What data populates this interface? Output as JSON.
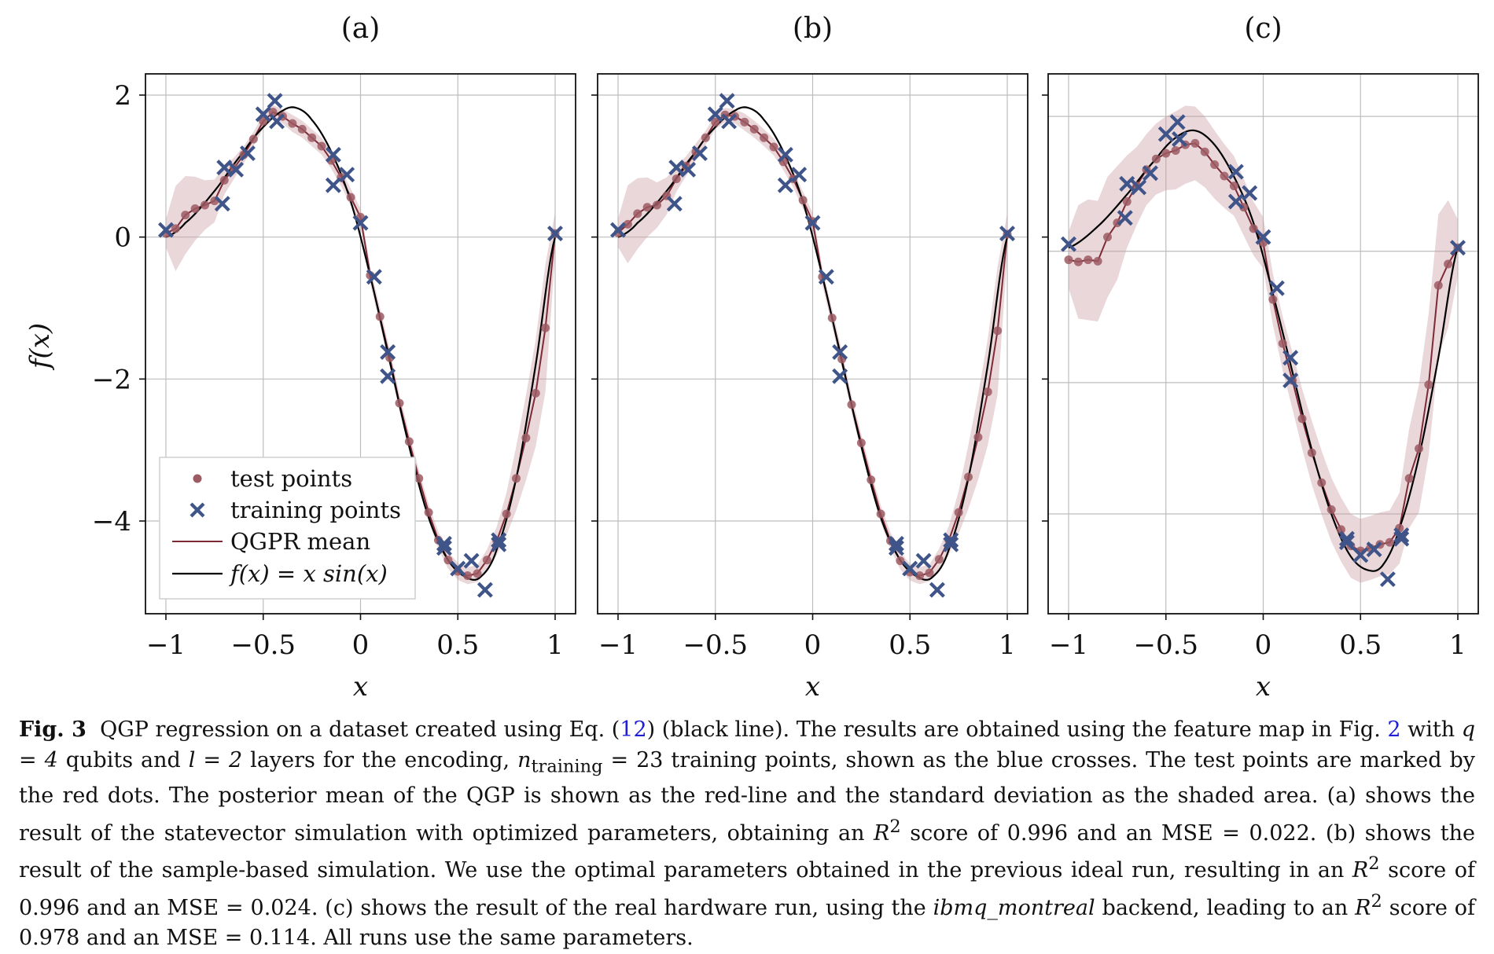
{
  "chart_data": [
    {
      "type": "scatter",
      "panel_label": "(a)",
      "xlabel": "x",
      "ylabel": "f(x)",
      "xlim": [
        -1.1,
        1.1
      ],
      "ylim": [
        -5.4,
        2.3
      ],
      "xticks": [
        -1,
        -0.5,
        0,
        0.5,
        1
      ],
      "xtick_labels": [
        "−1",
        "−0.5",
        "0",
        "0.5",
        "1"
      ],
      "yticks": [
        2,
        0,
        -2,
        -4
      ],
      "ytick_labels": [
        "2",
        "0",
        "−2",
        "−4"
      ],
      "grid": true,
      "legend": {
        "placement": "lower-left",
        "entries": [
          "test points",
          "training points",
          "QGPR mean",
          "f(x) = x sin(x)"
        ]
      },
      "series": [
        {
          "name": "training points",
          "marker": "x",
          "color": "#3f5488",
          "x": [
            -1.0,
            -0.71,
            -0.7,
            -0.64,
            -0.58,
            -0.5,
            -0.44,
            -0.43,
            -0.14,
            -0.14,
            -0.07,
            0.0,
            0.07,
            0.14,
            0.14,
            0.43,
            0.43,
            0.5,
            0.57,
            0.64,
            0.71,
            0.71,
            1.0
          ],
          "y": [
            0.1,
            0.47,
            0.98,
            0.95,
            1.18,
            1.73,
            1.92,
            1.63,
            1.16,
            0.73,
            0.88,
            0.2,
            -0.56,
            -1.62,
            -1.96,
            -4.32,
            -4.38,
            -4.67,
            -4.56,
            -4.97,
            -4.27,
            -4.33,
            0.05
          ]
        },
        {
          "name": "test points",
          "marker": "dot",
          "color": "#9c5a63",
          "x": [
            -1.0,
            -0.95,
            -0.9,
            -0.85,
            -0.8,
            -0.75,
            -0.7,
            -0.65,
            -0.6,
            -0.55,
            -0.5,
            -0.45,
            -0.4,
            -0.35,
            -0.3,
            -0.25,
            -0.2,
            -0.15,
            -0.1,
            -0.05,
            0.0,
            0.05,
            0.1,
            0.15,
            0.2,
            0.25,
            0.3,
            0.35,
            0.4,
            0.45,
            0.5,
            0.55,
            0.6,
            0.65,
            0.7,
            0.75,
            0.8,
            0.85,
            0.9,
            0.95,
            1.0
          ],
          "y": [
            0.05,
            0.12,
            0.31,
            0.4,
            0.45,
            0.51,
            0.8,
            0.97,
            1.16,
            1.38,
            1.63,
            1.76,
            1.7,
            1.6,
            1.52,
            1.4,
            1.28,
            1.08,
            0.84,
            0.56,
            0.28,
            -0.54,
            -1.12,
            -1.7,
            -2.34,
            -2.88,
            -3.4,
            -3.88,
            -4.27,
            -4.55,
            -4.71,
            -4.77,
            -4.74,
            -4.55,
            -4.28,
            -3.9,
            -3.4,
            -2.83,
            -2.2,
            -1.28,
            0.05
          ]
        },
        {
          "name": "QGPR mean",
          "type": "line",
          "color": "#7d2a36",
          "x": [
            -1.0,
            -0.95,
            -0.9,
            -0.85,
            -0.8,
            -0.75,
            -0.7,
            -0.65,
            -0.6,
            -0.55,
            -0.5,
            -0.45,
            -0.4,
            -0.35,
            -0.3,
            -0.25,
            -0.2,
            -0.15,
            -0.1,
            -0.05,
            0.0,
            0.05,
            0.1,
            0.15,
            0.2,
            0.25,
            0.3,
            0.35,
            0.4,
            0.45,
            0.5,
            0.55,
            0.6,
            0.65,
            0.7,
            0.75,
            0.8,
            0.85,
            0.9,
            0.95,
            1.0
          ],
          "y": [
            0.05,
            0.12,
            0.31,
            0.4,
            0.45,
            0.51,
            0.8,
            0.97,
            1.16,
            1.38,
            1.63,
            1.76,
            1.7,
            1.6,
            1.52,
            1.4,
            1.28,
            1.08,
            0.84,
            0.56,
            0.28,
            -0.54,
            -1.12,
            -1.7,
            -2.34,
            -2.88,
            -3.4,
            -3.88,
            -4.27,
            -4.55,
            -4.71,
            -4.77,
            -4.74,
            -4.55,
            -4.28,
            -3.9,
            -3.4,
            -2.83,
            -2.2,
            -1.28,
            0.05
          ],
          "std": [
            0.2,
            0.6,
            0.55,
            0.45,
            0.35,
            0.3,
            0.2,
            0.15,
            0.12,
            0.1,
            0.1,
            0.1,
            0.1,
            0.12,
            0.12,
            0.12,
            0.12,
            0.12,
            0.12,
            0.12,
            0.12,
            0.12,
            0.12,
            0.12,
            0.12,
            0.12,
            0.12,
            0.12,
            0.12,
            0.12,
            0.12,
            0.12,
            0.12,
            0.15,
            0.2,
            0.3,
            0.45,
            0.6,
            0.75,
            0.9,
            0.3
          ]
        },
        {
          "name": "f(x) = x sin(x)",
          "type": "function",
          "color": "#000000"
        }
      ]
    },
    {
      "type": "scatter",
      "panel_label": "(b)",
      "xlabel": "x",
      "xlim": [
        -1.1,
        1.1
      ],
      "ylim": [
        -5.4,
        2.3
      ],
      "xticks": [
        -1,
        -0.5,
        0,
        0.5,
        1
      ],
      "xtick_labels": [
        "−1",
        "−0.5",
        "0",
        "0.5",
        "1"
      ],
      "grid": true,
      "series": [
        {
          "name": "training points",
          "marker": "x",
          "color": "#3f5488",
          "x": [
            -1.0,
            -0.71,
            -0.7,
            -0.64,
            -0.58,
            -0.5,
            -0.44,
            -0.43,
            -0.14,
            -0.14,
            -0.07,
            0.0,
            0.07,
            0.14,
            0.14,
            0.43,
            0.43,
            0.5,
            0.57,
            0.64,
            0.71,
            0.71,
            1.0
          ],
          "y": [
            0.1,
            0.47,
            0.98,
            0.95,
            1.18,
            1.73,
            1.92,
            1.63,
            1.16,
            0.73,
            0.88,
            0.2,
            -0.56,
            -1.62,
            -1.96,
            -4.32,
            -4.38,
            -4.67,
            -4.56,
            -4.97,
            -4.27,
            -4.33,
            0.05
          ]
        },
        {
          "name": "test points",
          "marker": "dot",
          "color": "#9c5a63",
          "x": [
            -1.0,
            -0.95,
            -0.9,
            -0.85,
            -0.8,
            -0.75,
            -0.7,
            -0.65,
            -0.6,
            -0.55,
            -0.5,
            -0.45,
            -0.4,
            -0.35,
            -0.3,
            -0.25,
            -0.2,
            -0.15,
            -0.1,
            -0.05,
            0.0,
            0.05,
            0.1,
            0.15,
            0.2,
            0.25,
            0.3,
            0.35,
            0.4,
            0.45,
            0.5,
            0.55,
            0.6,
            0.65,
            0.7,
            0.75,
            0.8,
            0.85,
            0.9,
            0.95,
            1.0
          ],
          "y": [
            0.06,
            0.18,
            0.33,
            0.42,
            0.45,
            0.58,
            0.82,
            1.0,
            1.2,
            1.4,
            1.62,
            1.72,
            1.7,
            1.62,
            1.52,
            1.4,
            1.27,
            1.06,
            0.82,
            0.52,
            0.22,
            -0.56,
            -1.14,
            -1.72,
            -2.36,
            -2.9,
            -3.42,
            -3.9,
            -4.28,
            -4.56,
            -4.72,
            -4.77,
            -4.73,
            -4.54,
            -4.27,
            -3.88,
            -3.38,
            -2.82,
            -2.18,
            -1.32,
            0.04
          ]
        },
        {
          "name": "QGPR mean",
          "type": "line",
          "color": "#7d2a36",
          "x": [
            -1.0,
            -0.95,
            -0.9,
            -0.85,
            -0.8,
            -0.75,
            -0.7,
            -0.65,
            -0.6,
            -0.55,
            -0.5,
            -0.45,
            -0.4,
            -0.35,
            -0.3,
            -0.25,
            -0.2,
            -0.15,
            -0.1,
            -0.05,
            0.0,
            0.05,
            0.1,
            0.15,
            0.2,
            0.25,
            0.3,
            0.35,
            0.4,
            0.45,
            0.5,
            0.55,
            0.6,
            0.65,
            0.7,
            0.75,
            0.8,
            0.85,
            0.9,
            0.95,
            1.0
          ],
          "y": [
            0.06,
            0.18,
            0.33,
            0.42,
            0.45,
            0.58,
            0.82,
            1.0,
            1.2,
            1.4,
            1.62,
            1.72,
            1.7,
            1.62,
            1.52,
            1.4,
            1.27,
            1.06,
            0.82,
            0.52,
            0.22,
            -0.56,
            -1.14,
            -1.72,
            -2.36,
            -2.9,
            -3.42,
            -3.9,
            -4.28,
            -4.56,
            -4.72,
            -4.77,
            -4.73,
            -4.54,
            -4.27,
            -3.88,
            -3.38,
            -2.82,
            -2.18,
            -1.32,
            0.04
          ],
          "std": [
            0.2,
            0.55,
            0.5,
            0.42,
            0.32,
            0.26,
            0.18,
            0.14,
            0.12,
            0.1,
            0.1,
            0.1,
            0.1,
            0.12,
            0.12,
            0.12,
            0.12,
            0.12,
            0.12,
            0.12,
            0.12,
            0.12,
            0.12,
            0.12,
            0.12,
            0.12,
            0.12,
            0.12,
            0.12,
            0.12,
            0.12,
            0.12,
            0.12,
            0.15,
            0.2,
            0.3,
            0.45,
            0.6,
            0.75,
            0.9,
            0.3
          ]
        },
        {
          "name": "f(x) = x sin(x)",
          "type": "function",
          "color": "#000000"
        }
      ]
    },
    {
      "type": "scatter",
      "panel_label": "(c)",
      "xlabel": "x",
      "xlim": [
        -1.1,
        1.1
      ],
      "ylim": [
        -5.4,
        2.3
      ],
      "xticks": [
        -1,
        -0.5,
        0,
        0.5,
        1
      ],
      "xtick_labels": [
        "−1",
        "−0.5",
        "0",
        "0.5",
        "1"
      ],
      "grid": true,
      "horizontal_gridlines_y": [
        1.7,
        -0.2,
        -2.05,
        -3.9
      ],
      "series": [
        {
          "name": "training points",
          "marker": "x",
          "color": "#3f5488",
          "x": [
            -1.0,
            -0.71,
            -0.7,
            -0.64,
            -0.58,
            -0.5,
            -0.44,
            -0.43,
            -0.14,
            -0.14,
            -0.07,
            0.0,
            0.07,
            0.14,
            0.14,
            0.43,
            0.43,
            0.5,
            0.57,
            0.64,
            0.71,
            0.71,
            1.0
          ],
          "y": [
            -0.1,
            0.27,
            0.75,
            0.7,
            0.9,
            1.45,
            1.62,
            1.38,
            0.92,
            0.5,
            0.62,
            0.0,
            -0.72,
            -1.7,
            -2.02,
            -4.25,
            -4.3,
            -4.48,
            -4.4,
            -4.82,
            -4.2,
            -4.25,
            -0.15
          ]
        },
        {
          "name": "test points",
          "marker": "dot",
          "color": "#9c5a63",
          "x": [
            -1.0,
            -0.95,
            -0.9,
            -0.85,
            -0.8,
            -0.75,
            -0.7,
            -0.65,
            -0.6,
            -0.55,
            -0.5,
            -0.45,
            -0.4,
            -0.35,
            -0.3,
            -0.25,
            -0.2,
            -0.15,
            -0.1,
            -0.05,
            0.0,
            0.05,
            0.1,
            0.15,
            0.2,
            0.25,
            0.3,
            0.35,
            0.4,
            0.45,
            0.5,
            0.55,
            0.6,
            0.65,
            0.7,
            0.75,
            0.8,
            0.85,
            0.9,
            0.95,
            1.0
          ],
          "y": [
            -0.32,
            -0.35,
            -0.32,
            -0.34,
            0.0,
            0.2,
            0.5,
            0.72,
            0.95,
            1.1,
            1.18,
            1.22,
            1.3,
            1.32,
            1.2,
            1.02,
            0.86,
            0.72,
            0.42,
            0.12,
            -0.08,
            -0.88,
            -1.5,
            -2.02,
            -2.56,
            -3.04,
            -3.46,
            -3.84,
            -4.12,
            -4.35,
            -4.42,
            -4.38,
            -4.33,
            -4.3,
            -4.1,
            -3.4,
            -2.98,
            -2.08,
            -0.68,
            -0.38,
            -0.15
          ]
        },
        {
          "name": "QGPR mean",
          "type": "line",
          "color": "#7d2a36",
          "x": [
            -1.0,
            -0.95,
            -0.9,
            -0.85,
            -0.8,
            -0.75,
            -0.7,
            -0.65,
            -0.6,
            -0.55,
            -0.5,
            -0.45,
            -0.4,
            -0.35,
            -0.3,
            -0.25,
            -0.2,
            -0.15,
            -0.1,
            -0.05,
            0.0,
            0.05,
            0.1,
            0.15,
            0.2,
            0.25,
            0.3,
            0.35,
            0.4,
            0.45,
            0.5,
            0.55,
            0.6,
            0.65,
            0.7,
            0.75,
            0.8,
            0.85,
            0.9,
            0.95,
            1.0
          ],
          "y": [
            -0.32,
            -0.35,
            -0.32,
            -0.34,
            0.0,
            0.2,
            0.5,
            0.72,
            0.95,
            1.1,
            1.18,
            1.22,
            1.3,
            1.32,
            1.2,
            1.02,
            0.86,
            0.72,
            0.42,
            0.12,
            -0.08,
            -0.88,
            -1.5,
            -2.02,
            -2.56,
            -3.04,
            -3.46,
            -3.84,
            -4.12,
            -4.35,
            -4.42,
            -4.38,
            -4.33,
            -4.3,
            -4.1,
            -3.4,
            -2.98,
            -2.08,
            -0.68,
            -0.38,
            -0.15
          ],
          "std": [
            0.4,
            0.8,
            0.85,
            0.85,
            0.85,
            0.8,
            0.65,
            0.55,
            0.5,
            0.5,
            0.52,
            0.55,
            0.55,
            0.52,
            0.5,
            0.48,
            0.45,
            0.42,
            0.4,
            0.38,
            0.36,
            0.36,
            0.38,
            0.4,
            0.42,
            0.45,
            0.45,
            0.45,
            0.45,
            0.45,
            0.45,
            0.45,
            0.45,
            0.45,
            0.5,
            0.7,
            0.9,
            1.0,
            1.0,
            0.9,
            0.4
          ]
        },
        {
          "name": "f(x) = x sin(x)",
          "type": "function",
          "color": "#000000"
        }
      ]
    }
  ],
  "caption": {
    "label": "Fig. 3",
    "p1": "QGP regression on a dataset created using Eq. (",
    "eq_ref": "12",
    "p2": ") (black line). The results are obtained using the feature map in Fig. ",
    "fig_ref": "2",
    "p3": " with ",
    "q_expr": "q = 4",
    "p4": " qubits and ",
    "l_expr": "l = 2",
    "p5": " layers for the encoding, ",
    "n_sym": "n",
    "n_sub": "training",
    "p6": " = 23 training points, shown as the blue crosses. The test points are marked by the red dots. The posterior mean of the QGP is shown as the red-line and the standard deviation as the shaded area. (a) shows the result of the statevector simulation with optimized parameters, obtaining an ",
    "r2_a": "R",
    "p7": " score of 0.996 and an MSE = 0.022. (b) shows the result of the sample-based simulation. We use the optimal parameters obtained in the previous ideal run, resulting in an ",
    "r2_b": "R",
    "p8": " score of 0.996 and an MSE = 0.024. (c) shows the result of the real hardware run, using the ",
    "backend": "ibmq_montreal",
    "p9": " backend, leading to an ",
    "r2_c": "R",
    "p10": " score of 0.978 and an MSE = 0.114. All runs use the same parameters.",
    "sup": "2"
  }
}
